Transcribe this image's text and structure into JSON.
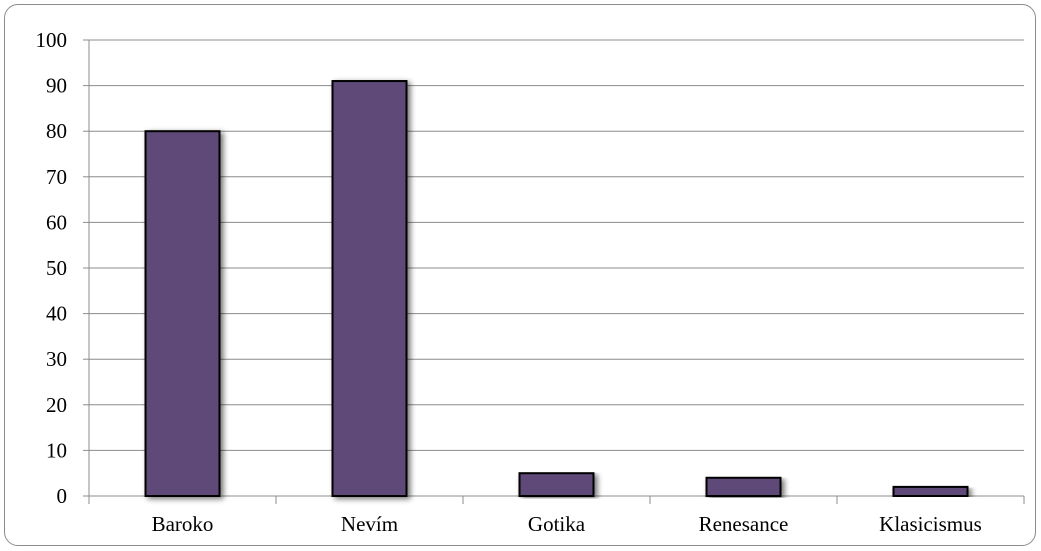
{
  "chart_data": {
    "type": "bar",
    "title": "",
    "xlabel": "",
    "ylabel": "",
    "categories": [
      "Baroko",
      "Nevím",
      "Gotika",
      "Renesance",
      "Klasicismus"
    ],
    "values": [
      80,
      91,
      5,
      4,
      2
    ],
    "ylim": [
      0,
      100
    ],
    "ytick_step": 10,
    "yticks": [
      "0",
      "10",
      "20",
      "30",
      "40",
      "50",
      "60",
      "70",
      "80",
      "90",
      "100"
    ],
    "grid": true,
    "legend": "none",
    "colors": {
      "bar_fill": "#5f4878",
      "bar_stroke": "#000000",
      "grid": "#8c8c8c",
      "axis": "#8c8c8c"
    }
  }
}
